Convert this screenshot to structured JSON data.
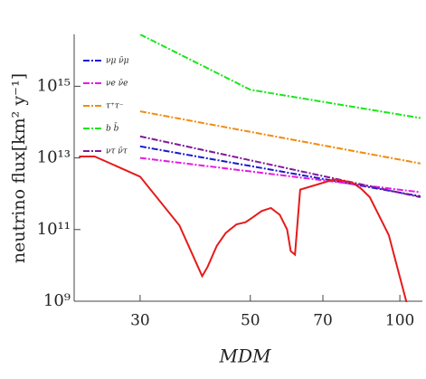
{
  "chart_data": {
    "type": "line",
    "xlabel": "MDM",
    "ylabel": "neutrino flux[km² y⁻¹]",
    "xlog": true,
    "ylog": true,
    "xlim": [
      22.1,
      111
    ],
    "ylim": [
      1000000000.0,
      2.5e+16
    ],
    "xticks": [
      30,
      50,
      70,
      100
    ],
    "yticks": [
      {
        "value": 1000000000.0,
        "label": "10⁹"
      },
      {
        "value": 100000000000.0,
        "label": "10¹¹"
      },
      {
        "value": 10000000000000.0,
        "label": "10¹³"
      },
      {
        "value": 1000000000000000.0,
        "label": "10¹⁵"
      }
    ],
    "legend": "upper left",
    "series": [
      {
        "name": "νμ ν̄μ",
        "color": "#1a1acc",
        "dash": "7 2 2 2",
        "x": [
          30,
          110
        ],
        "values": [
          21000000000000.0,
          850000000000.0
        ]
      },
      {
        "name": "νe ν̄e",
        "color": "#e61ae6",
        "dash": "7 2 2 2",
        "x": [
          30,
          110
        ],
        "values": [
          10000000000000.0,
          1100000000000.0
        ]
      },
      {
        "name": "τ⁺τ⁻",
        "color": "#f08c10",
        "dash": "7 2 2 2",
        "x": [
          30,
          110
        ],
        "values": [
          200000000000000.0,
          7000000000000.0
        ]
      },
      {
        "name": "b b̄",
        "color": "#1ae61a",
        "dash": "7 2 2 2",
        "x": [
          30,
          50,
          110
        ],
        "values": [
          2.8e+16,
          800000000000000.0,
          130000000000000.0
        ]
      },
      {
        "name": "ντ ν̄τ",
        "color": "#801a99",
        "dash": "7 2 2 2",
        "x": [
          30,
          110
        ],
        "values": [
          40000000000000.0,
          800000000000.0
        ]
      },
      {
        "color": "#e61a1a",
        "dash": "",
        "x": [
          22.6,
          24.3,
          30,
          36,
          40,
          41,
          42.8,
          44.6,
          46.9,
          48.9,
          50.6,
          52.7,
          55,
          57.3,
          59.3,
          60.3,
          61.5,
          63,
          73.7,
          80,
          83.5,
          87,
          95,
          99,
          103,
          104
        ],
        "values": [
          11000000000000.0,
          11000000000000.0,
          3000000000000.0,
          130000000000.0,
          5000000000.0,
          9000000000.0,
          35000000000.0,
          80000000000.0,
          140000000000.0,
          160000000000.0,
          220000000000.0,
          330000000000.0,
          400000000000.0,
          260000000000.0,
          100000000000.0,
          25000000000.0,
          20000000000.0,
          1300000000000.0,
          2500000000000.0,
          2100000000000.0,
          1400000000000.0,
          800000000000.0,
          70000000000.0,
          8000000000.0,
          1000000000.0,
          500000000.0
        ]
      }
    ]
  }
}
